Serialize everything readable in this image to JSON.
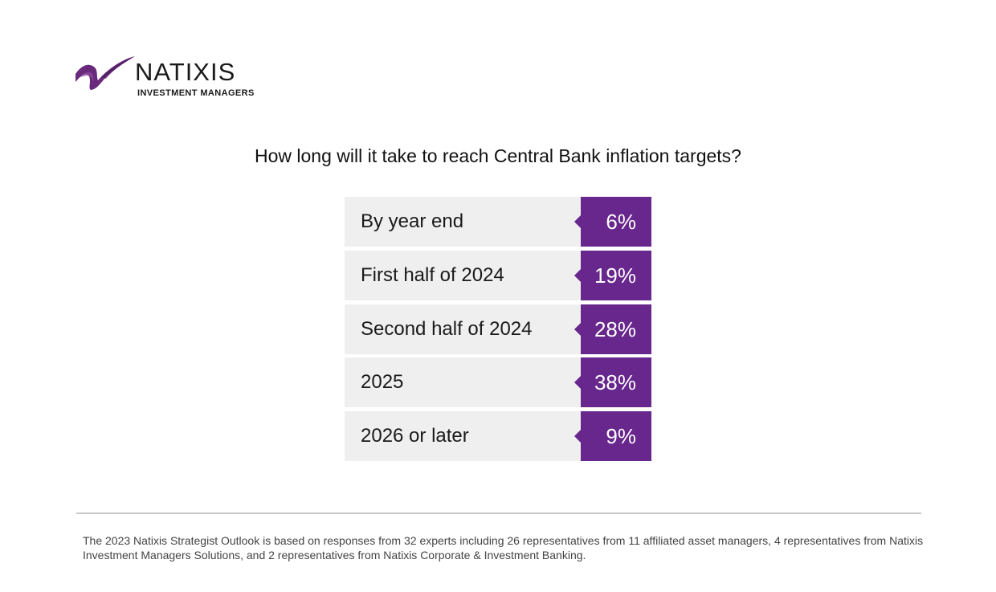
{
  "brand": {
    "name": "NATIXIS",
    "subtitle": "INVESTMENT MANAGERS"
  },
  "colors": {
    "accent": "#68278d",
    "label_bg": "#efefef",
    "divider": "#c8c8c8"
  },
  "chart_data": {
    "type": "table",
    "title": "How long will it take to reach Central Bank inflation targets?",
    "categories": [
      "By year end",
      "First half of 2024",
      "Second half of 2024",
      "2025",
      "2026 or later"
    ],
    "values": [
      6,
      19,
      28,
      38,
      9
    ],
    "value_labels": [
      "6%",
      "19%",
      "28%",
      "38%",
      "9%"
    ]
  },
  "footnote": "The 2023 Natixis Strategist Outlook is based on responses from 32 experts including 26 representatives from 11 affiliated asset managers, 4 representatives from Natixis Investment Managers Solutions, and 2 representatives from Natixis Corporate & Investment Banking."
}
